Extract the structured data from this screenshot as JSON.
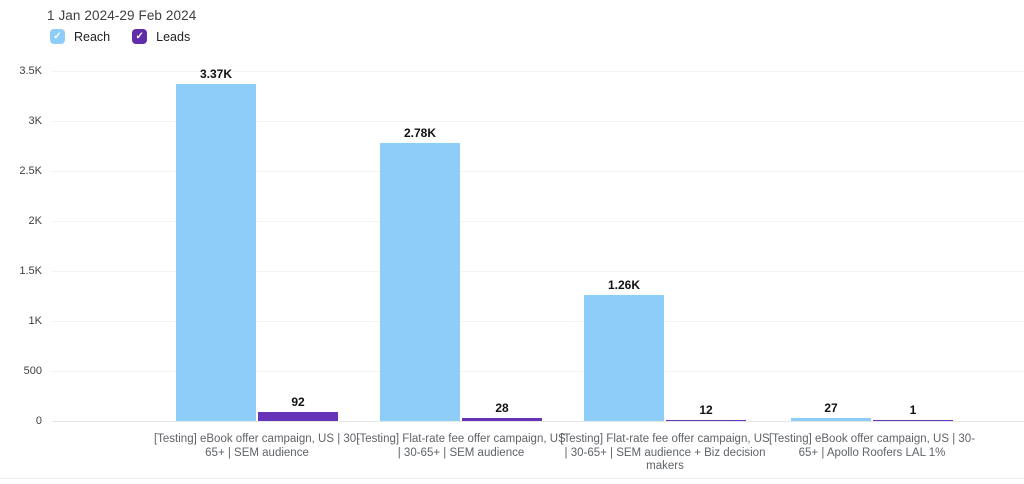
{
  "header": {
    "date_range": "1 Jan 2024-29 Feb 2024"
  },
  "legend": {
    "reach": {
      "label": "Reach",
      "checked": true,
      "checkmark": "✓"
    },
    "leads": {
      "label": "Leads",
      "checked": true,
      "checkmark": "✓"
    }
  },
  "colors": {
    "reach": "#8ecdf8",
    "leads": "#6733b9",
    "reach_checkbox": "#8ecdf8",
    "leads_checkbox": "#5f2da8",
    "grid": "#f1f3f4",
    "title_text": "#3c4043",
    "category_text": "#5f6368",
    "value_text": "#111111"
  },
  "chart_data": {
    "type": "bar",
    "title": "1 Jan 2024-29 Feb 2024",
    "categories": [
      "[Testing] eBook offer campaign, US | 30-65+ | SEM audience",
      "[Testing] Flat-rate fee offer campaign, US | 30-65+ | SEM audience",
      "[Testing] Flat-rate fee offer campaign, US | 30-65+ | SEM audience + Biz decision makers",
      "[Testing] eBook offer campaign, US | 30-65+ | Apollo Roofers LAL 1%"
    ],
    "series": [
      {
        "name": "Reach",
        "values": [
          3370,
          2780,
          1260,
          27
        ],
        "labels": [
          "3.37K",
          "2.78K",
          "1.26K",
          "27"
        ]
      },
      {
        "name": "Leads",
        "values": [
          92,
          28,
          12,
          1
        ],
        "labels": [
          "92",
          "28",
          "12",
          "1"
        ]
      }
    ],
    "xlabel": "",
    "ylabel": "",
    "ylim": [
      0,
      3500
    ],
    "yticks": [
      0,
      500,
      1000,
      1500,
      2000,
      2500,
      3000,
      3500
    ],
    "ytick_labels": [
      "0",
      "500",
      "1K",
      "1.5K",
      "2K",
      "2.5K",
      "3K",
      "3.5K"
    ],
    "grid": true,
    "legend_position": "top-left"
  }
}
